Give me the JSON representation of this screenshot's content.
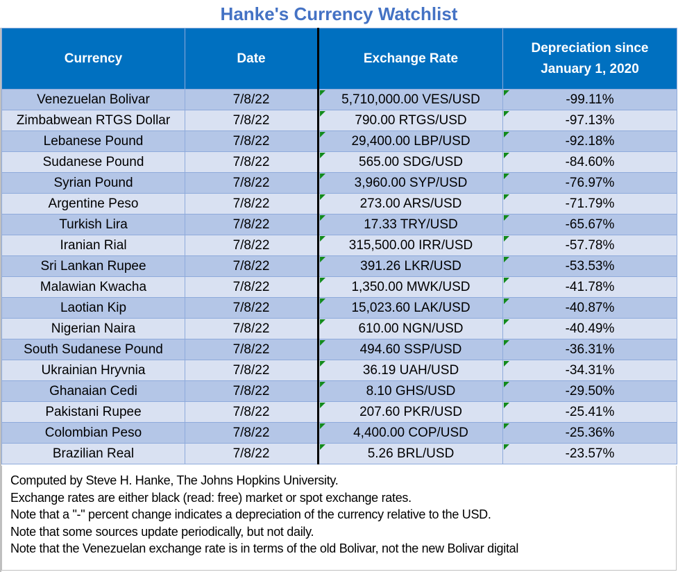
{
  "title": "Hanke's Currency Watchlist",
  "table": {
    "headers": [
      "Currency",
      "Date",
      "Exchange Rate",
      "Depreciation since January 1, 2020"
    ],
    "header_lines": {
      "depreciation_line1": "Depreciation since",
      "depreciation_line2": "January 1, 2020"
    },
    "rows": [
      {
        "currency": "Venezuelan Bolivar",
        "date": "7/8/22",
        "rate": "5,710,000.00 VES/USD",
        "depreciation": "-99.11%"
      },
      {
        "currency": "Zimbabwean RTGS Dollar",
        "date": "7/8/22",
        "rate": "790.00 RTGS/USD",
        "depreciation": "-97.13%"
      },
      {
        "currency": "Lebanese Pound",
        "date": "7/8/22",
        "rate": "29,400.00 LBP/USD",
        "depreciation": "-92.18%"
      },
      {
        "currency": "Sudanese Pound",
        "date": "7/8/22",
        "rate": "565.00 SDG/USD",
        "depreciation": "-84.60%"
      },
      {
        "currency": "Syrian Pound",
        "date": "7/8/22",
        "rate": "3,960.00 SYP/USD",
        "depreciation": "-76.97%"
      },
      {
        "currency": "Argentine Peso",
        "date": "7/8/22",
        "rate": "273.00 ARS/USD",
        "depreciation": "-71.79%"
      },
      {
        "currency": "Turkish Lira",
        "date": "7/8/22",
        "rate": "17.33 TRY/USD",
        "depreciation": "-65.67%"
      },
      {
        "currency": "Iranian Rial",
        "date": "7/8/22",
        "rate": "315,500.00 IRR/USD",
        "depreciation": "-57.78%"
      },
      {
        "currency": "Sri Lankan Rupee",
        "date": "7/8/22",
        "rate": "391.26 LKR/USD",
        "depreciation": "-53.53%"
      },
      {
        "currency": "Malawian Kwacha",
        "date": "7/8/22",
        "rate": "1,350.00 MWK/USD",
        "depreciation": "-41.78%"
      },
      {
        "currency": "Laotian Kip",
        "date": "7/8/22",
        "rate": "15,023.60 LAK/USD",
        "depreciation": "-40.87%"
      },
      {
        "currency": "Nigerian Naira",
        "date": "7/8/22",
        "rate": "610.00 NGN/USD",
        "depreciation": "-40.49%"
      },
      {
        "currency": "South Sudanese Pound",
        "date": "7/8/22",
        "rate": "494.60 SSP/USD",
        "depreciation": "-36.31%"
      },
      {
        "currency": "Ukrainian Hryvnia",
        "date": "7/8/22",
        "rate": "36.19 UAH/USD",
        "depreciation": "-34.31%"
      },
      {
        "currency": "Ghanaian Cedi",
        "date": "7/8/22",
        "rate": "8.10 GHS/USD",
        "depreciation": "-29.50%"
      },
      {
        "currency": "Pakistani Rupee",
        "date": "7/8/22",
        "rate": "207.60 PKR/USD",
        "depreciation": "-25.41%"
      },
      {
        "currency": "Colombian Peso",
        "date": "7/8/22",
        "rate": "4,400.00 COP/USD",
        "depreciation": "-25.36%"
      },
      {
        "currency": "Brazilian Real",
        "date": "7/8/22",
        "rate": "5.26 BRL/USD",
        "depreciation": "-23.57%"
      }
    ]
  },
  "notes": [
    "Computed by Steve H. Hanke, The Johns Hopkins University.",
    "Exchange rates are either black (read: free) market or spot exchange rates.",
    "Note that a \"-\" percent change indicates a depreciation of the currency relative to the USD.",
    "Note that some sources update periodically, but not daily.",
    "Note that the Venezuelan exchange rate is in terms of the old Bolivar, not the new Bolivar digital"
  ],
  "colors": {
    "title": "#4472c4",
    "header_bg": "#0070c0",
    "row_dark": "#b4c6e7",
    "row_light": "#d9e1f2",
    "indicator": "#128a1c"
  }
}
